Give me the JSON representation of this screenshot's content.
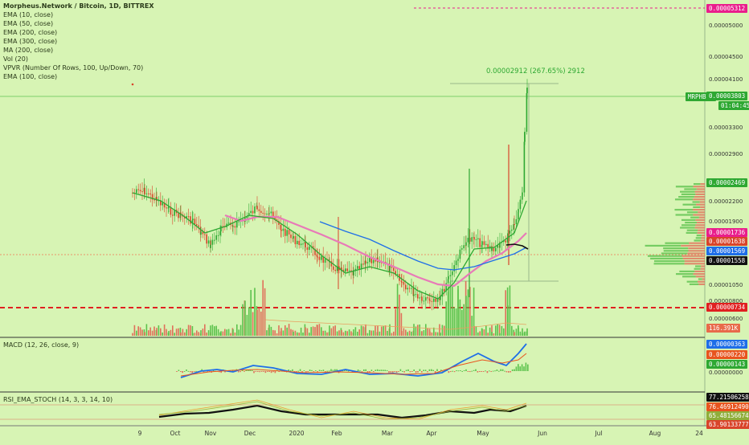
{
  "header": {
    "title": "Morpheus.Network / Bitcoin, 1D, BITTREX",
    "indicators": [
      "EMA (10, close)",
      "EMA (50, close)",
      "EMA (200, close)",
      "EMA (300, close)",
      "MA (200, close)",
      "Vol (20)",
      "VPVR (Number Of Rows, 100, Up/Down, 70)",
      "EMA (100, close)"
    ]
  },
  "macd_label": "MACD (12, 26, close, 9)",
  "rsi_label": "RSI_EMA_STOCH (14, 3, 3, 14, 10)",
  "measure_label": "0.00002912 (267.65%) 2912",
  "symbol_tag": "MRPHBTC",
  "countdown": "01:04:45",
  "price_axis": [
    "0.00005000",
    "0.00004500",
    "0.00004100",
    "0.00003300",
    "0.00002900",
    "0.00002200",
    "0.00001900",
    "0.00001050",
    "0.00000800",
    "0.00000600"
  ],
  "price_tags": [
    {
      "label": "0.00005312",
      "bg": "#e91e8c",
      "fg": "#ffffff"
    },
    {
      "label": "0.00003803",
      "bg": "#2ea832",
      "fg": "#ffffff"
    },
    {
      "label": "0.00002469",
      "bg": "#2ea832",
      "fg": "#ffffff"
    },
    {
      "label": "0.00001736",
      "bg": "#e91e8c",
      "fg": "#ffffff"
    },
    {
      "label": "0.00001638",
      "bg": "#d9442a",
      "fg": "#ffffff"
    },
    {
      "label": "0.00001569",
      "bg": "#1e6ee8",
      "fg": "#ffffff"
    },
    {
      "label": "0.00001558",
      "bg": "#111111",
      "fg": "#ffffff"
    },
    {
      "label": "0.00000734",
      "bg": "#e02020",
      "fg": "#ffffff"
    },
    {
      "label": "116.391K",
      "bg": "#e86a4a",
      "fg": "#ffffff"
    }
  ],
  "macd_tags": [
    {
      "label": "0.00000363",
      "bg": "#1e6ee8",
      "fg": "#ffffff"
    },
    {
      "label": "0.00000220",
      "bg": "#e8541e",
      "fg": "#ffffff"
    },
    {
      "label": "0.00000143",
      "bg": "#2ea832",
      "fg": "#ffffff"
    }
  ],
  "macd_axis": [
    "0.00000000"
  ],
  "rsi_tags": [
    {
      "label": "77.21506258",
      "bg": "#111111",
      "fg": "#ffffff"
    },
    {
      "label": "76.46912490",
      "bg": "#e8541e",
      "fg": "#ffffff"
    },
    {
      "label": "65.48156674",
      "bg": "#8fae3a",
      "fg": "#ffffff"
    },
    {
      "label": "63.90133777",
      "bg": "#d9442a",
      "fg": "#ffffff"
    }
  ],
  "date_axis": [
    "9",
    "Oct",
    "Nov",
    "Dec",
    "2020",
    "Feb",
    "Mar",
    "Apr",
    "May",
    "Jun",
    "Jul",
    "Aug",
    "24"
  ],
  "colors": {
    "bg": "#d7f4b4",
    "up": "#2ea832",
    "down": "#d9442a",
    "ema_blue": "#1e6ee8",
    "ema_pink": "#e87ab8",
    "ema_black": "#111111",
    "ema_green": "#2ea832",
    "support": "#e02020",
    "resistance": "#e91e8c"
  },
  "chart_data": {
    "type": "candlestick",
    "x_range": [
      "2019-09-09",
      "2020-08-24"
    ],
    "y_range": [
      5e-06,
      5.4e-05
    ],
    "key_levels": {
      "resistance": 5.312e-05,
      "support": 7.34e-06,
      "last": 3.803e-05
    },
    "measure": {
      "change": 2.912e-05,
      "percent": 267.65,
      "bars": 2912
    },
    "ema_lines": [
      {
        "name": "EMA pink",
        "values": [
          1.9e-05,
          1.95e-05,
          1.88e-05,
          1.78e-05,
          1.65e-05,
          1.58e-05,
          1.5e-05,
          1.4e-05,
          1.28e-05,
          1.35e-05,
          1.48e-05,
          1.65e-05,
          1.72e-05
        ]
      },
      {
        "name": "EMA blue",
        "values": [
          2.15e-05,
          2.05e-05,
          1.9e-05,
          1.75e-05,
          1.6e-05,
          1.5e-05,
          1.42e-05,
          1.5e-05,
          1.58e-05
        ]
      }
    ]
  }
}
